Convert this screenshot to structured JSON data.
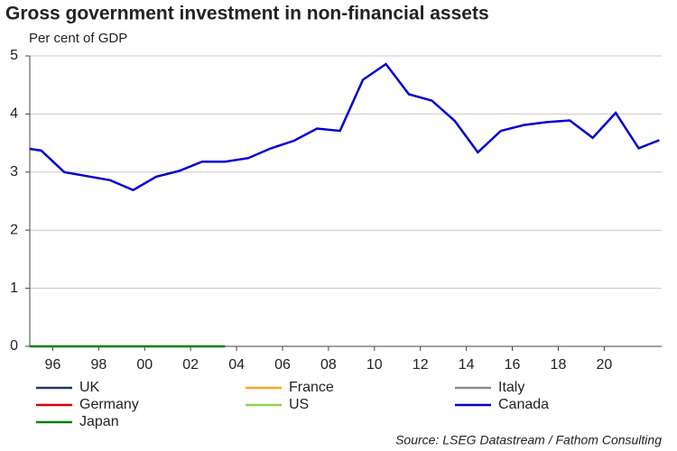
{
  "chart_data": {
    "type": "line",
    "title": "Gross government investment in non-financial assets",
    "subtitle": "Per cent of GDP",
    "source": "Source: LSEG Datastream / Fathom Consulting",
    "x": [
      1995,
      1995.5,
      1996.5,
      1997.5,
      1998.5,
      1999.5,
      2000.5,
      2001.5,
      2002.5,
      2003.5,
      2004.5,
      2005.5,
      2006.5,
      2007.5,
      2008.5,
      2009.5,
      2010.5,
      2011.5,
      2012.5,
      2013.5,
      2014.5,
      2015.5,
      2016.5,
      2017.5,
      2018.5,
      2019.5,
      2020.5,
      2021.5,
      2022.4
    ],
    "xlim": [
      1995,
      2022.5
    ],
    "xticks": [
      {
        "value": 1996,
        "label": "96"
      },
      {
        "value": 1998,
        "label": "98"
      },
      {
        "value": 2000,
        "label": "00"
      },
      {
        "value": 2002,
        "label": "02"
      },
      {
        "value": 2004,
        "label": "04"
      },
      {
        "value": 2006,
        "label": "06"
      },
      {
        "value": 2008,
        "label": "08"
      },
      {
        "value": 2010,
        "label": "10"
      },
      {
        "value": 2012,
        "label": "12"
      },
      {
        "value": 2014,
        "label": "14"
      },
      {
        "value": 2016,
        "label": "16"
      },
      {
        "value": 2018,
        "label": "18"
      },
      {
        "value": 2020,
        "label": "20"
      }
    ],
    "ylim": [
      0,
      5
    ],
    "yticks": [
      0,
      1,
      2,
      3,
      4,
      5
    ],
    "grid": true,
    "series": [
      {
        "name": "UK",
        "color": "#1f3864",
        "values": [
          null,
          null,
          null,
          null,
          null,
          null,
          null,
          null,
          null,
          null,
          null,
          null,
          null,
          null,
          null,
          null,
          null,
          null,
          null,
          null,
          null,
          null,
          null,
          null,
          null,
          null,
          null,
          null,
          null
        ]
      },
      {
        "name": "France",
        "color": "#f5a623",
        "values": [
          null,
          null,
          null,
          null,
          null,
          null,
          null,
          null,
          null,
          null,
          null,
          null,
          null,
          null,
          null,
          null,
          null,
          null,
          null,
          null,
          null,
          null,
          null,
          null,
          null,
          null,
          null,
          null,
          null
        ]
      },
      {
        "name": "Italy",
        "color": "#8c8c8c",
        "values": [
          null,
          null,
          null,
          null,
          null,
          null,
          null,
          null,
          null,
          null,
          null,
          null,
          null,
          null,
          null,
          null,
          null,
          null,
          null,
          null,
          null,
          null,
          null,
          null,
          null,
          null,
          null,
          null,
          null
        ]
      },
      {
        "name": "Germany",
        "color": "#e00000",
        "values": [
          null,
          null,
          null,
          null,
          null,
          null,
          null,
          null,
          null,
          null,
          null,
          null,
          null,
          null,
          null,
          null,
          null,
          null,
          null,
          null,
          null,
          null,
          null,
          null,
          null,
          null,
          null,
          null,
          null
        ]
      },
      {
        "name": "US",
        "color": "#92d050",
        "values": [
          null,
          null,
          null,
          null,
          null,
          null,
          null,
          null,
          null,
          null,
          null,
          null,
          null,
          null,
          null,
          null,
          null,
          null,
          null,
          null,
          null,
          null,
          null,
          null,
          null,
          null,
          null,
          null,
          null
        ]
      },
      {
        "name": "Canada",
        "color": "#0000cc",
        "values": [
          3.4,
          3.37,
          3.0,
          2.93,
          2.86,
          2.69,
          2.92,
          3.02,
          3.18,
          3.18,
          3.24,
          3.41,
          3.54,
          3.75,
          3.71,
          4.59,
          4.86,
          4.34,
          4.23,
          3.88,
          3.34,
          3.71,
          3.81,
          3.86,
          3.89,
          3.59,
          4.02,
          3.41,
          3.55
        ]
      },
      {
        "name": "Japan",
        "color": "#008000",
        "values": [
          0,
          0,
          0,
          0,
          0,
          0,
          0,
          0,
          0,
          0,
          null,
          null,
          null,
          null,
          null,
          null,
          null,
          null,
          null,
          null,
          null,
          null,
          null,
          null,
          null,
          null,
          null,
          null,
          null
        ]
      }
    ]
  }
}
